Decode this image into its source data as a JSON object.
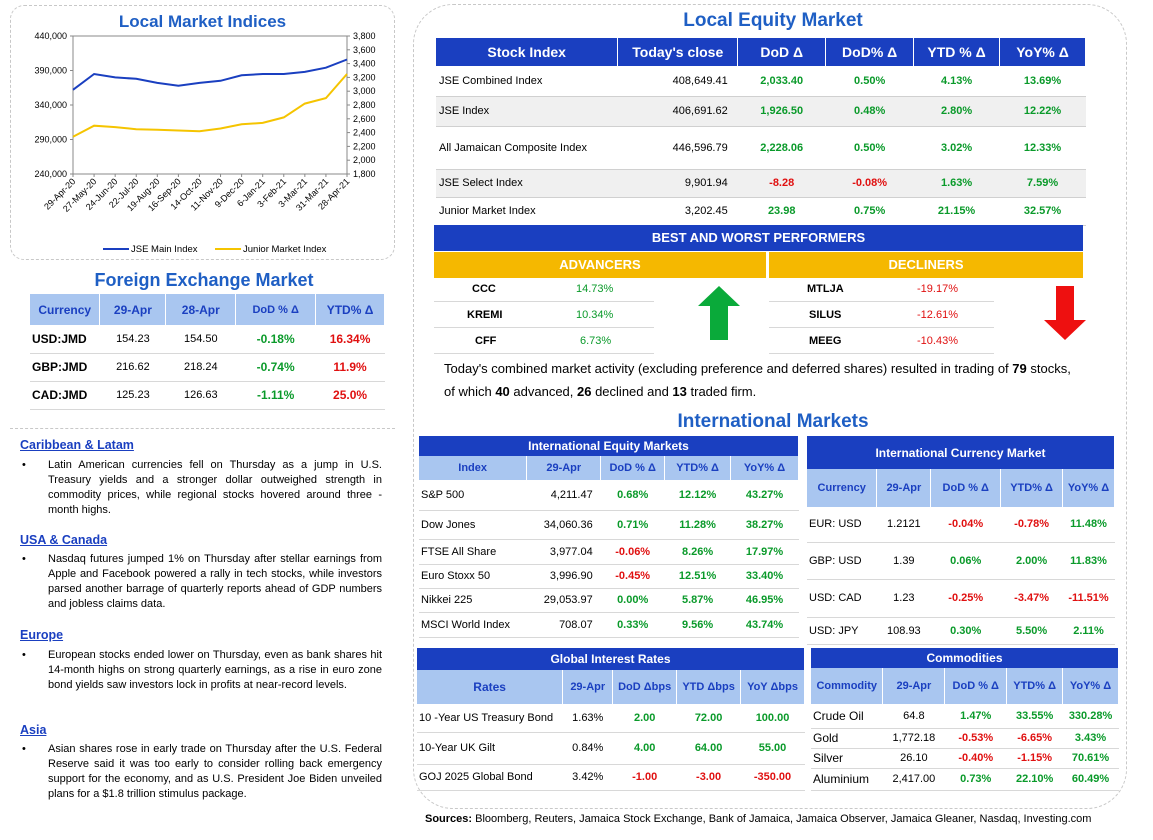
{
  "chart": {
    "title": "Local Market Indices",
    "left_ticks": [
      "440,000",
      "390,000",
      "340,000",
      "290,000",
      "240,000"
    ],
    "right_ticks": [
      "3,800",
      "3,600",
      "3,400",
      "3,200",
      "3,000",
      "2,800",
      "2,600",
      "2,400",
      "2,200",
      "2,000",
      "1,800"
    ],
    "x_ticks": [
      "29-Apr-20",
      "27-May-20",
      "24-Jun-20",
      "22-Jul-20",
      "19-Aug-20",
      "16-Sep-20",
      "14-Oct-20",
      "11-Nov-20",
      "9-Dec-20",
      "6-Jan-21",
      "3-Feb-21",
      "3-Mar-21",
      "31-Mar-21",
      "28-Apr-21"
    ],
    "legend": [
      "JSE Main Index",
      "Junior Market Index"
    ],
    "colors": {
      "main": "#1a3fc0",
      "junior": "#f5c400"
    }
  },
  "chart_data": {
    "type": "line",
    "title": "Local Market Indices",
    "x": [
      "29-Apr-20",
      "27-May-20",
      "24-Jun-20",
      "22-Jul-20",
      "19-Aug-20",
      "16-Sep-20",
      "14-Oct-20",
      "11-Nov-20",
      "9-Dec-20",
      "6-Jan-21",
      "3-Feb-21",
      "3-Mar-21",
      "31-Mar-21",
      "28-Apr-21"
    ],
    "series": [
      {
        "name": "JSE Main Index",
        "axis": "left",
        "values": [
          362000,
          385000,
          380000,
          378000,
          372000,
          368000,
          372000,
          375000,
          383000,
          385000,
          385000,
          388000,
          394000,
          406000
        ]
      },
      {
        "name": "Junior Market Index",
        "axis": "right",
        "values": [
          2340,
          2500,
          2480,
          2450,
          2440,
          2430,
          2420,
          2460,
          2520,
          2540,
          2620,
          2820,
          2900,
          3250
        ]
      }
    ],
    "ylim_left": [
      240000,
      440000
    ],
    "ylim_right": [
      1800,
      3800
    ],
    "legend": "bottom"
  },
  "fx": {
    "title": "Foreign Exchange Market",
    "headers": [
      "Currency",
      "29-Apr",
      "28-Apr",
      "DoD % Δ",
      "YTD% Δ"
    ],
    "rows": [
      {
        "currency": "USD:JMD",
        "d1": "154.23",
        "d2": "154.50",
        "dod": "-0.18%",
        "ytd": "16.34%"
      },
      {
        "currency": "GBP:JMD",
        "d1": "216.62",
        "d2": "218.24",
        "dod": "-0.74%",
        "ytd": "11.9%"
      },
      {
        "currency": "CAD:JMD",
        "d1": "125.23",
        "d2": "126.63",
        "dod": "-1.11%",
        "ytd": "25.0%"
      }
    ]
  },
  "news": [
    {
      "head": "Caribbean & Latam",
      "body": "Latin American currencies fell on Thursday as a jump in U.S. Treasury yields and a stronger dollar outweighed strength in commodity prices, while regional stocks hovered around three -month highs."
    },
    {
      "head": "USA & Canada",
      "body": "Nasdaq futures jumped 1% on Thursday after stellar earnings from Apple and Facebook powered a rally in tech stocks, while investors parsed another barrage of quarterly reports ahead of GDP numbers and jobless claims data."
    },
    {
      "head": "Europe",
      "body": "European stocks ended lower on Thursday, even as bank shares hit 14-month highs on strong quarterly earnings, as a rise in euro zone bond yields saw investors lock in profits at near-record levels."
    },
    {
      "head": "Asia",
      "body": "Asian shares rose in early trade on Thursday after the U.S. Federal Reserve said it was too early to consider rolling back emergency support for the economy, and as U.S. President Joe Biden unveiled plans for a $1.8 trillion stimulus package."
    }
  ],
  "equity": {
    "title": "Local Equity Market",
    "headers": [
      "Stock Index",
      "Today's close",
      "DoD  Δ",
      "DoD% Δ",
      "YTD % Δ",
      "YoY% Δ"
    ],
    "rows": [
      {
        "name": "JSE Combined Index",
        "close": "408,649.41",
        "dod": "2,033.40",
        "dodp": "0.50%",
        "ytd": "4.13%",
        "yoy": "13.69%"
      },
      {
        "name": "JSE Index",
        "close": "406,691.62",
        "dod": "1,926.50",
        "dodp": "0.48%",
        "ytd": "2.80%",
        "yoy": "12.22%"
      },
      {
        "name": "All Jamaican Composite Index",
        "close": "446,596.79",
        "dod": "2,228.06",
        "dodp": "0.50%",
        "ytd": "3.02%",
        "yoy": "12.33%"
      },
      {
        "name": "JSE Select Index",
        "close": "9,901.94",
        "dod": "-8.28",
        "dodp": "-0.08%",
        "ytd": "1.63%",
        "yoy": "7.59%"
      },
      {
        "name": "Junior Market Index",
        "close": "3,202.45",
        "dod": "23.98",
        "dodp": "0.75%",
        "ytd": "21.15%",
        "yoy": "32.57%"
      }
    ]
  },
  "performers": {
    "title": "BEST AND WORST PERFORMERS",
    "adv_label": "ADVANCERS",
    "dec_label": "DECLINERS",
    "advancers": [
      {
        "sym": "CCC",
        "val": "14.73%"
      },
      {
        "sym": "KREMI",
        "val": "10.34%"
      },
      {
        "sym": "CFF",
        "val": "6.73%"
      }
    ],
    "decliners": [
      {
        "sym": "MTLJA",
        "val": "-19.17%"
      },
      {
        "sym": "SILUS",
        "val": "-12.61%"
      },
      {
        "sym": "MEEG",
        "val": "-10.43%"
      }
    ]
  },
  "summary": {
    "p1": "Today's combined market activity (excluding preference and deferred shares) resulted in trading of ",
    "total": "79",
    "p2": " stocks, of which ",
    "adv": "40",
    "p3": " advanced, ",
    "dec": "26",
    "p4": " declined and ",
    "firm": "13",
    "p5": " traded firm."
  },
  "international": {
    "title": "International Markets",
    "equity": {
      "title": "International Equity Markets",
      "headers": [
        "Index",
        "29-Apr",
        "DoD % Δ",
        "YTD% Δ",
        "YoY% Δ"
      ],
      "rows": [
        {
          "name": "S&P 500",
          "val": "4,211.47",
          "dod": "0.68%",
          "ytd": "12.12%",
          "yoy": "43.27%"
        },
        {
          "name": "Dow Jones",
          "val": "34,060.36",
          "dod": "0.71%",
          "ytd": "11.28%",
          "yoy": "38.27%"
        },
        {
          "name": "FTSE All Share",
          "val": "3,977.04",
          "dod": "-0.06%",
          "ytd": "8.26%",
          "yoy": "17.97%"
        },
        {
          "name": "Euro Stoxx 50",
          "val": "3,996.90",
          "dod": "-0.45%",
          "ytd": "12.51%",
          "yoy": "33.40%"
        },
        {
          "name": "Nikkei 225",
          "val": "29,053.97",
          "dod": "0.00%",
          "ytd": "5.87%",
          "yoy": "46.95%"
        },
        {
          "name": "MSCI World Index",
          "val": "708.07",
          "dod": "0.33%",
          "ytd": "9.56%",
          "yoy": "43.74%"
        }
      ]
    },
    "currency": {
      "title": "International Currency Market",
      "headers": [
        "Currency",
        "29-Apr",
        "DoD % Δ",
        "YTD% Δ",
        "YoY% Δ"
      ],
      "rows": [
        {
          "name": "EUR: USD",
          "val": "1.2121",
          "dod": "-0.04%",
          "ytd": "-0.78%",
          "yoy": "11.48%"
        },
        {
          "name": "GBP: USD",
          "val": "1.39",
          "dod": "0.06%",
          "ytd": "2.00%",
          "yoy": "11.83%"
        },
        {
          "name": "USD: CAD",
          "val": "1.23",
          "dod": "-0.25%",
          "ytd": "-3.47%",
          "yoy": "-11.51%"
        },
        {
          "name": "USD: JPY",
          "val": "108.93",
          "dod": "0.30%",
          "ytd": "5.50%",
          "yoy": "2.11%"
        }
      ]
    },
    "rates": {
      "title": "Global Interest Rates",
      "headers": [
        "Rates",
        "29-Apr",
        "DoD Δbps",
        "YTD Δbps",
        "YoY Δbps"
      ],
      "rows": [
        {
          "name": "10 -Year US Treasury Bond",
          "val": "1.63%",
          "dod": "2.00",
          "ytd": "72.00",
          "yoy": "100.00"
        },
        {
          "name": "10-Year UK Gilt",
          "val": "0.84%",
          "dod": "4.00",
          "ytd": "64.00",
          "yoy": "55.00"
        },
        {
          "name": "GOJ 2025 Global Bond",
          "val": "3.42%",
          "dod": "-1.00",
          "ytd": "-3.00",
          "yoy": "-350.00"
        }
      ]
    },
    "commodities": {
      "title": "Commodities",
      "headers": [
        "Commodity",
        "29-Apr",
        "DoD % Δ",
        "YTD% Δ",
        "YoY% Δ"
      ],
      "rows": [
        {
          "name": "Crude Oil",
          "val": "64.8",
          "dod": "1.47%",
          "ytd": "33.55%",
          "yoy": "330.28%"
        },
        {
          "name": "Gold",
          "val": "1,772.18",
          "dod": "-0.53%",
          "ytd": "-6.65%",
          "yoy": "3.43%"
        },
        {
          "name": "Silver",
          "val": "26.10",
          "dod": "-0.40%",
          "ytd": "-1.15%",
          "yoy": "70.61%"
        },
        {
          "name": "Aluminium",
          "val": "2,417.00",
          "dod": "0.73%",
          "ytd": "22.10%",
          "yoy": "60.49%"
        }
      ]
    }
  },
  "sources": {
    "label": "Sources:",
    "text": " Bloomberg, Reuters, Jamaica Stock Exchange, Bank of Jamaica, Jamaica Observer, Jamaica Gleaner, Nasdaq, Investing.com"
  }
}
